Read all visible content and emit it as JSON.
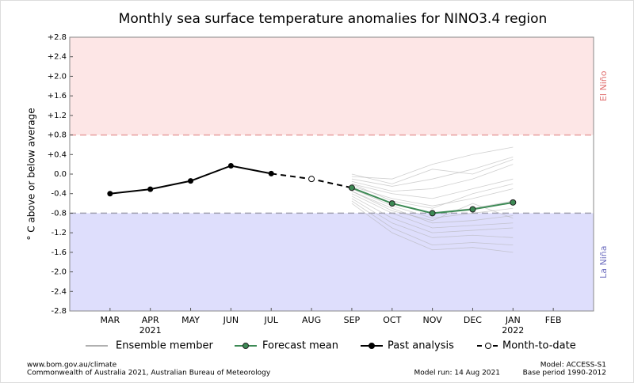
{
  "chart_data": {
    "type": "line",
    "title": "Monthly sea surface temperature anomalies for NINO3.4 region",
    "y_label": "° C above or below average",
    "categories": [
      "MAR",
      "APR\n2021",
      "MAY",
      "JUN",
      "JUL",
      "AUG",
      "SEP",
      "OCT",
      "NOV",
      "DEC",
      "JAN\n2022",
      "FEB"
    ],
    "ylim": [
      -2.8,
      2.8
    ],
    "yticks": [
      {
        "value": -2.8,
        "label": "-2.8"
      },
      {
        "value": -2.4,
        "label": "-2.4"
      },
      {
        "value": -2.0,
        "label": "-2.0"
      },
      {
        "value": -1.6,
        "label": "-1.6"
      },
      {
        "value": -1.2,
        "label": "-1.2"
      },
      {
        "value": -0.8,
        "label": "-0.8"
      },
      {
        "value": -0.4,
        "label": "-0.4"
      },
      {
        "value": 0,
        "label": "0.0"
      },
      {
        "value": 0.4,
        "label": "+0.4"
      },
      {
        "value": 0.8,
        "label": "+0.8"
      },
      {
        "value": 1.2,
        "label": "+1.2"
      },
      {
        "value": 1.6,
        "label": "+1.6"
      },
      {
        "value": 2.0,
        "label": "+2.0"
      },
      {
        "value": 2.4,
        "label": "+2.4"
      },
      {
        "value": 2.8,
        "label": "+2.8"
      }
    ],
    "el_nino": {
      "label": "El Niño",
      "threshold": 0.8,
      "color": "#fde6e6",
      "line_color": "#e8a0a0",
      "text_color": "#e07070"
    },
    "la_nina": {
      "label": "La Niña",
      "threshold": -0.8,
      "color": "#dedefc",
      "line_color": "#a0a0b0",
      "text_color": "#7070c0"
    },
    "ensemble": {
      "name": "Ensemble member",
      "color": "#b0b0b0",
      "members": [
        [
          null,
          null,
          null,
          null,
          null,
          null,
          -0.05,
          -0.1,
          0.2,
          0.4,
          0.55,
          null
        ],
        [
          null,
          null,
          null,
          null,
          null,
          null,
          -0.1,
          -0.25,
          -0.1,
          0.1,
          0.35,
          null
        ],
        [
          null,
          null,
          null,
          null,
          null,
          null,
          -0.15,
          -0.35,
          -0.3,
          -0.1,
          0.2,
          null
        ],
        [
          null,
          null,
          null,
          null,
          null,
          null,
          -0.2,
          -0.4,
          -0.5,
          -0.3,
          -0.1,
          null
        ],
        [
          null,
          null,
          null,
          null,
          null,
          null,
          -0.25,
          -0.5,
          -0.65,
          -0.5,
          -0.3,
          null
        ],
        [
          null,
          null,
          null,
          null,
          null,
          null,
          -0.3,
          -0.6,
          -0.8,
          -0.7,
          -0.55,
          null
        ],
        [
          null,
          null,
          null,
          null,
          null,
          null,
          -0.3,
          -0.65,
          -0.9,
          -0.8,
          -0.7,
          null
        ],
        [
          null,
          null,
          null,
          null,
          null,
          null,
          -0.35,
          -0.7,
          -1.0,
          -0.95,
          -0.85,
          null
        ],
        [
          null,
          null,
          null,
          null,
          null,
          null,
          -0.4,
          -0.8,
          -1.1,
          -1.05,
          -1.0,
          null
        ],
        [
          null,
          null,
          null,
          null,
          null,
          null,
          -0.45,
          -0.9,
          -1.2,
          -1.15,
          -1.1,
          null
        ],
        [
          null,
          null,
          null,
          null,
          null,
          null,
          -0.5,
          -1.0,
          -1.3,
          -1.25,
          -1.3,
          null
        ],
        [
          null,
          null,
          null,
          null,
          null,
          null,
          -0.55,
          -1.1,
          -1.45,
          -1.4,
          -1.45,
          null
        ],
        [
          null,
          null,
          null,
          null,
          null,
          null,
          -0.6,
          -1.2,
          -1.55,
          -1.5,
          -1.6,
          null
        ],
        [
          null,
          null,
          null,
          null,
          null,
          null,
          0.0,
          -0.2,
          0.1,
          0.0,
          0.3,
          null
        ],
        [
          null,
          null,
          null,
          null,
          null,
          null,
          -0.2,
          -0.55,
          -0.7,
          -0.4,
          -0.2,
          null
        ],
        [
          null,
          null,
          null,
          null,
          null,
          null,
          -0.35,
          -0.75,
          -0.95,
          -0.6,
          -0.9,
          null
        ]
      ]
    },
    "series": [
      {
        "name": "Forecast mean",
        "color": "#3d8a55",
        "values": [
          null,
          null,
          null,
          null,
          null,
          null,
          -0.28,
          -0.6,
          -0.8,
          -0.72,
          -0.58,
          null
        ]
      },
      {
        "name": "Past analysis",
        "color": "#000000",
        "values": [
          -0.4,
          -0.31,
          -0.14,
          0.17,
          0.01,
          null,
          null,
          null,
          null,
          null,
          null,
          null
        ]
      },
      {
        "name": "Month-to-date",
        "color": "#000000",
        "values": [
          null,
          null,
          null,
          null,
          null,
          -0.1,
          null,
          null,
          null,
          null,
          null,
          null
        ]
      }
    ]
  },
  "footer": {
    "url": "www.bom.gov.au/climate",
    "copyright": "Commonwealth of Australia 2021, Australian Bureau of Meteorology",
    "model_run": "Model run: 14 Aug 2021",
    "model": "Model: ACCESS-S1",
    "base_period": "Base period 1990-2012"
  }
}
